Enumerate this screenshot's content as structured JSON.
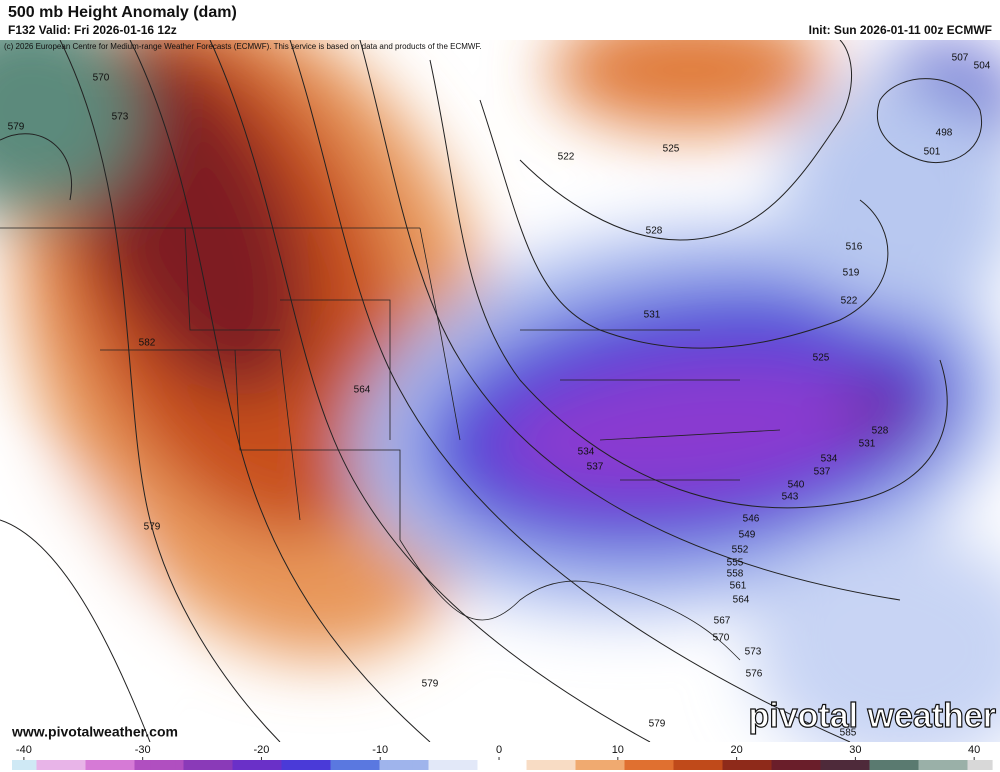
{
  "header": {
    "title": "500 mb Height Anomaly (dam)",
    "valid": "F132 Valid: Fri 2026-01-16 12z",
    "init": "Init: Sun 2026-01-11 00z ECMWF",
    "credit": "(c) 2026 European Centre for Medium-range Weather Forecasts (ECMWF). This service is based on data and products of the ECMWF."
  },
  "map": {
    "contour_labels": [
      570,
      573,
      579,
      582,
      564,
      579,
      579,
      579,
      522,
      525,
      528,
      531,
      534,
      537,
      534,
      537,
      540,
      543,
      546,
      549,
      552,
      555,
      558,
      561,
      564,
      567,
      570,
      573,
      576,
      528,
      531,
      516,
      519,
      522,
      525,
      498,
      501,
      504,
      507,
      585
    ]
  },
  "footer": {
    "website": "www.pivotalweather.com",
    "logo": "pivotal weather"
  },
  "colorbar": {
    "lim": [
      -41,
      41.5
    ],
    "ticks": [
      -40,
      -30,
      -20,
      -10,
      0,
      10,
      20,
      30,
      40
    ],
    "colors": [
      "#cfe9f5",
      "#e8b4e8",
      "#d67ad6",
      "#b04fc0",
      "#8a3ab8",
      "#6a30c8",
      "#4a3ad8",
      "#5a78e0",
      "#9fb4ec",
      "#e2e8f8",
      "#ffffff",
      "#f8dcc4",
      "#f0aa70",
      "#e07030",
      "#c04a1a",
      "#8e2a1a",
      "#6a1e2a",
      "#4e2a3a",
      "#5a7a70",
      "#9ab0a8",
      "#d8d8d8"
    ]
  }
}
